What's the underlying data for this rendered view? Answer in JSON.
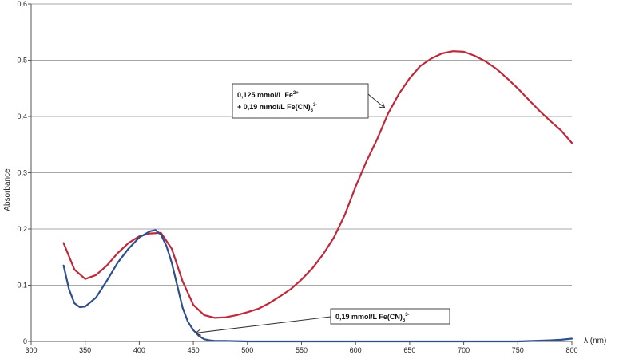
{
  "chart_data": {
    "type": "line",
    "xlabel": "λ (nm)",
    "ylabel": "Absorbance",
    "xlim": [
      300,
      800
    ],
    "ylim": [
      0,
      0.6
    ],
    "x_ticks": [
      "300",
      "350",
      "400",
      "450",
      "500",
      "550",
      "600",
      "650",
      "700",
      "750",
      "800"
    ],
    "y_ticks": [
      "0",
      "0,1",
      "0,2",
      "0,3",
      "0,4",
      "0,5",
      "0,6"
    ],
    "grid": "horizontal",
    "series": [
      {
        "color": "#c0283a",
        "x": [
          330,
          340,
          350,
          360,
          370,
          380,
          390,
          400,
          410,
          420,
          430,
          440,
          450,
          460,
          470,
          480,
          490,
          500,
          510,
          520,
          530,
          540,
          550,
          560,
          570,
          580,
          590,
          600,
          610,
          620,
          630,
          640,
          650,
          660,
          670,
          680,
          690,
          700,
          710,
          720,
          730,
          740,
          750,
          760,
          770,
          780,
          790,
          800
        ],
        "y": [
          0.175,
          0.128,
          0.111,
          0.118,
          0.135,
          0.157,
          0.175,
          0.187,
          0.192,
          0.193,
          0.165,
          0.107,
          0.065,
          0.047,
          0.042,
          0.043,
          0.047,
          0.052,
          0.058,
          0.068,
          0.08,
          0.093,
          0.11,
          0.13,
          0.155,
          0.185,
          0.225,
          0.275,
          0.32,
          0.36,
          0.405,
          0.44,
          0.468,
          0.49,
          0.503,
          0.512,
          0.516,
          0.515,
          0.508,
          0.498,
          0.485,
          0.468,
          0.45,
          0.43,
          0.41,
          0.392,
          0.375,
          0.353
        ]
      },
      {
        "color": "#2e4f8f",
        "x": [
          330,
          335,
          340,
          345,
          350,
          360,
          370,
          380,
          390,
          400,
          410,
          415,
          420,
          425,
          430,
          435,
          440,
          445,
          450,
          455,
          460,
          465,
          470,
          480,
          500,
          550,
          600,
          650,
          700,
          750,
          780,
          790,
          800
        ],
        "y": [
          0.135,
          0.093,
          0.068,
          0.061,
          0.062,
          0.078,
          0.108,
          0.14,
          0.165,
          0.185,
          0.196,
          0.198,
          0.19,
          0.17,
          0.14,
          0.1,
          0.06,
          0.035,
          0.02,
          0.01,
          0.004,
          0.002,
          0.001,
          0.001,
          0.0,
          0.0,
          0.0,
          0.0,
          0.0,
          0.0,
          0.002,
          0.003,
          0.005
        ]
      }
    ],
    "annotations": [
      {
        "lines": [
          {
            "main": "0,125 mmol/L Fe",
            "sup": "2+",
            "tail": ""
          },
          {
            "main": "+ 0,19 mmol/L Fe(CN)",
            "sub": "6",
            "sup": "3-"
          }
        ],
        "arrow_to": [
          627,
          0.415
        ]
      },
      {
        "lines": [
          {
            "main": "0,19 mmol/L Fe(CN)",
            "sub": "6",
            "sup": "3-"
          }
        ],
        "arrow_to": [
          452,
          0.015
        ]
      }
    ]
  }
}
